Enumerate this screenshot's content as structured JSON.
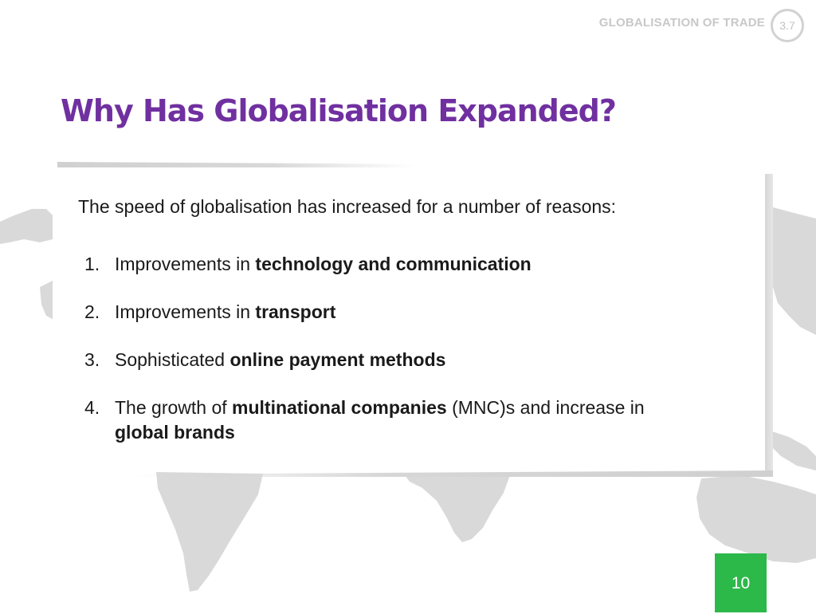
{
  "header": {
    "label": "GLOBALISATION OF TRADE",
    "section_number": "3.7"
  },
  "slide": {
    "title": "Why Has Globalisation Expanded?",
    "intro": "The speed of globalisation has increased for a number of reasons:",
    "reasons": [
      {
        "num": "1.",
        "pre": "Improvements in ",
        "bold": "technology and communication",
        "post": "",
        "bold2": ""
      },
      {
        "num": "2.",
        "pre": "Improvements in ",
        "bold": "transport",
        "post": "",
        "bold2": ""
      },
      {
        "num": "3.",
        "pre": "Sophisticated ",
        "bold": "online payment methods",
        "post": "",
        "bold2": ""
      },
      {
        "num": "4.",
        "pre": "The growth of ",
        "bold": "multinational companies",
        "post": " (MNC)s and increase in ",
        "bold2": "global brands"
      }
    ]
  },
  "footer": {
    "page_number": "10"
  },
  "colors": {
    "title": "#7030a0",
    "page_badge": "#2db84a",
    "map": "#d9d9d9"
  }
}
